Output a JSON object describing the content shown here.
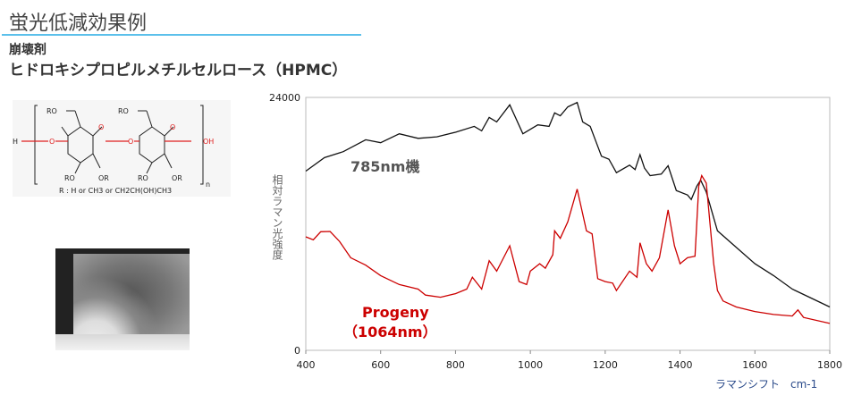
{
  "header": {
    "title": "蛍光低減効果例",
    "category": "崩壊剤",
    "compound": "ヒドロキシプロピルメチルセルロース（HPMC）"
  },
  "structure": {
    "caption": "R : H or CH3 or CH2CH(OH)CH3",
    "labels": [
      "RO",
      "RO",
      "H",
      "O",
      "O",
      "O",
      "O",
      "OH",
      "RO",
      "OR",
      "RO",
      "OR",
      "n"
    ]
  },
  "chart_data": {
    "type": "line",
    "xlabel": "ラマンシフト　cm-1",
    "ylabel": "相対ラマン光強度",
    "xlim": [
      400,
      1800
    ],
    "ylim": [
      0,
      24000
    ],
    "xticks": [
      400,
      600,
      800,
      1000,
      1200,
      1400,
      1600,
      1800
    ],
    "yticks": [
      0,
      24000
    ],
    "grid": false,
    "series": [
      {
        "name": "785nm機",
        "color": "#111111",
        "x": [
          400,
          450,
          500,
          560,
          600,
          650,
          700,
          750,
          800,
          850,
          870,
          890,
          910,
          945,
          980,
          1020,
          1050,
          1065,
          1080,
          1100,
          1125,
          1140,
          1160,
          1190,
          1210,
          1230,
          1265,
          1280,
          1293,
          1305,
          1320,
          1350,
          1368,
          1390,
          1420,
          1430,
          1445,
          1455,
          1470,
          1500,
          1550,
          1600,
          1650,
          1700,
          1750,
          1800
        ],
        "y": [
          17000,
          18280,
          18850,
          19980,
          19700,
          20550,
          20120,
          20260,
          20690,
          21250,
          20830,
          22100,
          21680,
          23300,
          20550,
          21400,
          21250,
          22530,
          22250,
          23100,
          23520,
          21680,
          21250,
          18420,
          18140,
          16860,
          17570,
          17150,
          18560,
          17290,
          16580,
          16720,
          17510,
          15160,
          14740,
          14310,
          15590,
          16150,
          15020,
          11340,
          9780,
          8220,
          7090,
          5810,
          4960,
          4110
        ]
      },
      {
        "name": "Progeny（1064nm）",
        "label_lines": [
          "Progeny",
          "（1064nm）"
        ],
        "color": "#cc0000",
        "x": [
          400,
          420,
          440,
          465,
          490,
          520,
          560,
          600,
          650,
          700,
          720,
          760,
          800,
          830,
          845,
          870,
          890,
          910,
          945,
          970,
          990,
          1000,
          1025,
          1040,
          1060,
          1065,
          1080,
          1100,
          1125,
          1150,
          1165,
          1180,
          1200,
          1220,
          1230,
          1265,
          1285,
          1293,
          1310,
          1325,
          1345,
          1368,
          1385,
          1400,
          1420,
          1440,
          1450,
          1458,
          1470,
          1490,
          1500,
          1515,
          1550,
          1600,
          1650,
          1700,
          1715,
          1730,
          1800
        ],
        "y": [
          10770,
          10490,
          11250,
          11280,
          10340,
          8790,
          8080,
          7090,
          6240,
          5810,
          5240,
          5040,
          5380,
          5810,
          6940,
          5810,
          8500,
          7510,
          9920,
          6520,
          6240,
          7510,
          8220,
          7790,
          9070,
          11340,
          10630,
          12190,
          15300,
          11340,
          11050,
          6800,
          6520,
          6380,
          5670,
          7510,
          6940,
          10200,
          8220,
          7510,
          8790,
          13320,
          9920,
          8220,
          8790,
          8930,
          15590,
          16580,
          15870,
          8220,
          5670,
          4680,
          4110,
          3680,
          3400,
          3260,
          3830,
          3120,
          2550
        ]
      }
    ]
  }
}
